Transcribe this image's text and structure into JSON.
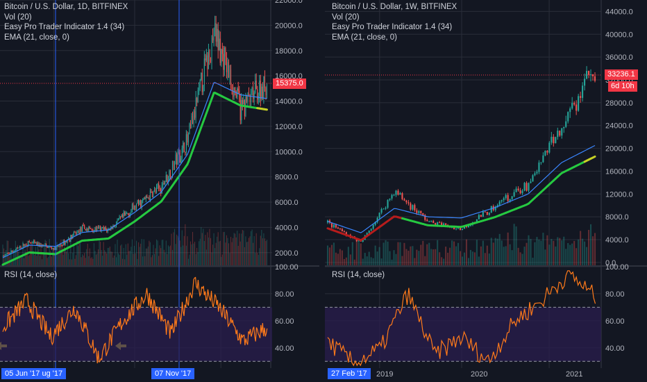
{
  "colors": {
    "bg": "#131722",
    "grid": "#2a2e39",
    "up": "#26a69a",
    "down": "#ef5350",
    "ema": "#3a86ff",
    "rsi": "#ff7a1a",
    "rsi_band": "#2a1d4d",
    "vline": "#2962ff",
    "tag_red": "#f23645",
    "tag_blue": "#2962ff",
    "arrow": "#ffeb3b",
    "ema_trend_green": "#26c941",
    "ema_trend_yellow": "#c6d126",
    "ema_trend_red": "#b71c1c"
  },
  "left": {
    "legend": [
      "Bitcoin / U.S. Dollar, 1D, BITFINEX",
      "Vol (20)",
      "Easy Pro Trader Indicator 1.4 (34)",
      "EMA (21, close, 0)"
    ],
    "price_ticks": [
      "22000.0",
      "20000.0",
      "18000.0",
      "16000.0",
      "14000.0",
      "12000.0",
      "10000.0",
      "8000.0",
      "6000.0",
      "4000.0",
      "2000.0"
    ],
    "price_tag": "15375.0",
    "rsi_title": "RSI (14, close)",
    "rsi_ticks": [
      "100.00",
      "80.00",
      "60.00",
      "40.00"
    ],
    "date_tag_1": "05 Jun '17",
    "date_tag_1_suffix": "ug '17",
    "date_tag_2": "07 Nov '17"
  },
  "right": {
    "legend": [
      "Bitcoin / U.S. Dollar, 1W, BITFINEX",
      "Vol (20)",
      "Easy Pro Trader Indicator 1.4 (34)",
      "EMA (21, close, 0)"
    ],
    "price_ticks": [
      "44000.0",
      "40000.0",
      "36000.0",
      "32000.0",
      "28000.0",
      "24000.0",
      "20000.0",
      "16000.0",
      "12000.0",
      "8000.0",
      "4000.0",
      "0.0"
    ],
    "price_tag": "33236.1",
    "countdown_tag": "6d 10h",
    "rsi_title": "RSI (14, close)",
    "rsi_ticks": [
      "100.00",
      "80.00",
      "60.00",
      "40.00"
    ],
    "date_tag": "27 Feb '17",
    "x_ticks": [
      "2019",
      "2020",
      "2021"
    ]
  },
  "chart_data": [
    {
      "type": "candlestick",
      "title": "Bitcoin / U.S. Dollar, 1D, BITFINEX",
      "ylim": [
        1000,
        22000
      ],
      "series": [
        {
          "name": "price",
          "x": [
            "2017-05-01",
            "2017-06-05",
            "2017-07-15",
            "2017-08-15",
            "2017-09-15",
            "2017-10-15",
            "2017-11-07",
            "2017-12-01",
            "2017-12-17",
            "2018-01-01",
            "2018-01-10"
          ],
          "values": [
            1700,
            2800,
            2300,
            3900,
            3800,
            5600,
            7200,
            10800,
            19500,
            13500,
            15375
          ]
        },
        {
          "name": "EMA (21, close, 0)",
          "values": [
            1600,
            2600,
            2500,
            3600,
            3800,
            5200,
            6800,
            9800,
            15500,
            14500,
            14200
          ]
        }
      ]
    },
    {
      "type": "line",
      "title": "RSI (14, close)",
      "ylim": [
        25,
        100
      ],
      "bands": [
        30,
        70
      ],
      "series": [
        {
          "name": "RSI (14, close)",
          "values": [
            55,
            75,
            48,
            70,
            32,
            60,
            80,
            50,
            88,
            70,
            45,
            55
          ]
        }
      ]
    },
    {
      "type": "candlestick",
      "title": "Bitcoin / U.S. Dollar, 1W, BITFINEX",
      "ylim": [
        0,
        44000
      ],
      "x_ticks": [
        "2019",
        "2020",
        "2021"
      ],
      "series": [
        {
          "name": "price",
          "x": [
            "2018-07",
            "2018-12",
            "2019-06",
            "2019-12",
            "2020-03",
            "2020-07",
            "2020-10",
            "2020-12",
            "2021-01"
          ],
          "values": [
            7000,
            3500,
            12500,
            7200,
            5800,
            9800,
            13500,
            24000,
            33236.1
          ]
        },
        {
          "name": "EMA (21, close, 0)",
          "values": [
            7200,
            5200,
            9500,
            8000,
            7800,
            9600,
            12000,
            17500,
            20500
          ]
        }
      ]
    },
    {
      "type": "line",
      "title": "RSI (14, close)",
      "ylim": [
        25,
        100
      ],
      "bands": [
        30,
        70
      ],
      "series": [
        {
          "name": "RSI (14, close)",
          "values": [
            45,
            28,
            40,
            80,
            35,
            48,
            30,
            60,
            75,
            95,
            78
          ]
        }
      ]
    }
  ]
}
